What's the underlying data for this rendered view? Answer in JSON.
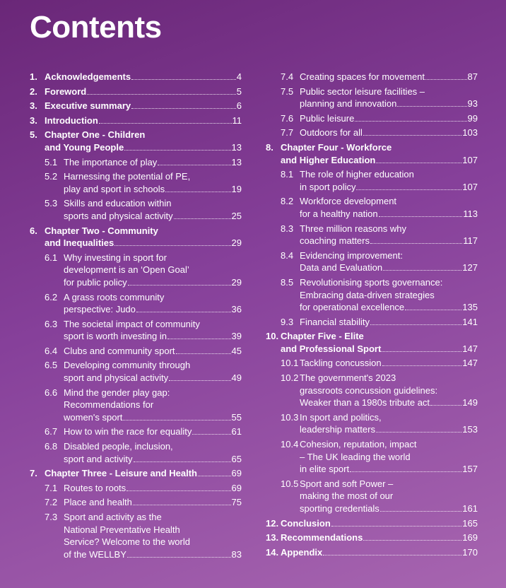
{
  "title": "Contents",
  "columns": [
    [
      {
        "heading": {
          "num": "1.",
          "lines": [
            "Acknowledgements"
          ],
          "page": 4
        },
        "items": []
      },
      {
        "heading": {
          "num": "2.",
          "lines": [
            "Foreword"
          ],
          "page": 5
        },
        "items": []
      },
      {
        "heading": {
          "num": "3.",
          "lines": [
            "Executive summary"
          ],
          "page": 6
        },
        "items": []
      },
      {
        "heading": {
          "num": "3.",
          "lines": [
            "Introduction"
          ],
          "page": 11
        },
        "items": []
      },
      {
        "heading": {
          "num": "5.",
          "lines": [
            "Chapter One - Children",
            "and Young People"
          ],
          "page": 13
        },
        "items": [
          {
            "num": "5.1",
            "lines": [
              "The importance of play"
            ],
            "page": 13
          },
          {
            "num": "5.2",
            "lines": [
              "Harnessing the potential of PE,",
              "play and sport in schools"
            ],
            "page": 19
          },
          {
            "num": "5.3",
            "lines": [
              "Skills and education within",
              "sports and physical activity"
            ],
            "page": 25
          }
        ]
      },
      {
        "heading": {
          "num": "6.",
          "lines": [
            "Chapter Two - Community",
            "and Inequalities"
          ],
          "page": 29
        },
        "items": [
          {
            "num": "6.1",
            "lines": [
              "Why investing in sport for",
              "development is an ‘Open Goal’",
              "for public policy"
            ],
            "page": 29
          },
          {
            "num": "6.2",
            "lines": [
              "A grass roots community",
              "perspective: Judo"
            ],
            "page": 36
          },
          {
            "num": "6.3",
            "lines": [
              "The societal impact of community",
              "sport is worth investing in"
            ],
            "page": 39
          },
          {
            "num": "6.4",
            "lines": [
              "Clubs and community sport"
            ],
            "page": 45
          },
          {
            "num": "6.5",
            "lines": [
              "Developing community through",
              "sport and physical activity"
            ],
            "page": 49
          },
          {
            "num": "6.6",
            "lines": [
              "Mind the gender play gap:",
              "Recommendations for",
              "women's sport"
            ],
            "page": 55
          },
          {
            "num": "6.7",
            "lines": [
              "How to win the race for equality"
            ],
            "page": 61
          },
          {
            "num": "6.8",
            "lines": [
              "Disabled people, inclusion,",
              "sport and activity"
            ],
            "page": 65
          }
        ]
      },
      {
        "heading": {
          "num": "7.",
          "lines": [
            "Chapter Three - Leisure and Health"
          ],
          "page": 69
        },
        "items": [
          {
            "num": "7.1",
            "lines": [
              "Routes to roots"
            ],
            "page": 69
          },
          {
            "num": "7.2",
            "lines": [
              "Place and health"
            ],
            "page": 75
          },
          {
            "num": "7.3",
            "lines": [
              "Sport and activity as the",
              "National Preventative Health",
              "Service? Welcome to the world",
              "of the WELLBY"
            ],
            "page": 83
          }
        ]
      }
    ],
    [
      {
        "items": [
          {
            "num": "7.4",
            "lines": [
              "Creating spaces for movement"
            ],
            "page": 87
          },
          {
            "num": "7.5",
            "lines": [
              "Public sector leisure facilities –",
              "planning and innovation"
            ],
            "page": 93
          },
          {
            "num": "7.6",
            "lines": [
              "Public leisure"
            ],
            "page": 99
          },
          {
            "num": "7.7",
            "lines": [
              "Outdoors for all"
            ],
            "page": 103
          }
        ]
      },
      {
        "heading": {
          "num": "8.",
          "lines": [
            "Chapter Four - Workforce",
            "and Higher Education"
          ],
          "page": 107
        },
        "items": [
          {
            "num": "8.1",
            "lines": [
              "The role of higher education",
              "in sport policy"
            ],
            "page": 107
          },
          {
            "num": "8.2",
            "lines": [
              "Workforce development",
              "for a healthy nation"
            ],
            "page": 113
          },
          {
            "num": "8.3",
            "lines": [
              "Three million reasons why",
              "coaching matters"
            ],
            "page": 117
          },
          {
            "num": "8.4",
            "lines": [
              "Evidencing improvement:",
              "Data and Evaluation"
            ],
            "page": 127
          },
          {
            "num": "8.5",
            "lines": [
              "Revolutionising sports governance:",
              "Embracing data-driven strategies",
              "for operational excellence"
            ],
            "page": 135
          },
          {
            "num": "9.3",
            "lines": [
              "Financial stability"
            ],
            "page": 141
          }
        ]
      },
      {
        "heading": {
          "num": "10.",
          "lines": [
            "Chapter Five - Elite",
            "and Professional Sport"
          ],
          "page": 147
        },
        "items": [
          {
            "num": "10.1",
            "lines": [
              "Tackling concussion"
            ],
            "page": 147
          },
          {
            "num": "10.2",
            "lines": [
              "The government's 2023",
              "grassroots concussion guidelines:",
              "Weaker than a 1980s tribute act"
            ],
            "page": 149
          },
          {
            "num": "10.3",
            "lines": [
              "In sport and politics,",
              "leadership matters"
            ],
            "page": 153
          },
          {
            "num": "10.4",
            "lines": [
              "Cohesion, reputation, impact",
              "– The UK leading the world",
              "in elite sport"
            ],
            "page": 157
          },
          {
            "num": "10.5",
            "lines": [
              "Sport and soft Power –",
              "making the most of our",
              "sporting credentials"
            ],
            "page": 161
          }
        ]
      },
      {
        "heading": {
          "num": "12.",
          "lines": [
            "Conclusion"
          ],
          "page": 165
        },
        "items": []
      },
      {
        "heading": {
          "num": "13.",
          "lines": [
            "Recommendations"
          ],
          "page": 169
        },
        "items": []
      },
      {
        "heading": {
          "num": "14.",
          "lines": [
            "Appendix"
          ],
          "page": 170
        },
        "items": []
      }
    ]
  ]
}
